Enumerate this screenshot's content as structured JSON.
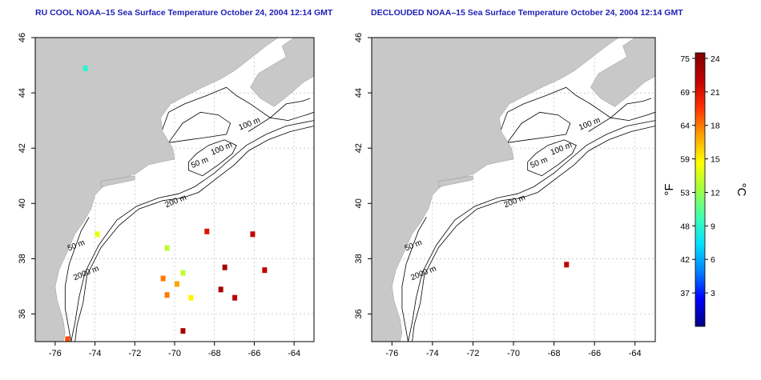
{
  "panels": [
    {
      "title": "RU COOL NOAA–15 Sea Surface Temperature October 24, 2004 12:14 GMT",
      "hot_spots": [
        {
          "lon": -67.5,
          "lat": 37.7,
          "temp_c": 23
        },
        {
          "lon": -67.7,
          "lat": 36.9,
          "temp_c": 23
        },
        {
          "lon": -65.5,
          "lat": 37.6,
          "temp_c": 22
        },
        {
          "lon": -69.6,
          "lat": 37.5,
          "temp_c": 13
        },
        {
          "lon": -69.9,
          "lat": 37.1,
          "temp_c": 17
        },
        {
          "lon": -70.6,
          "lat": 37.3,
          "temp_c": 18
        },
        {
          "lon": -70.4,
          "lat": 36.7,
          "temp_c": 18
        },
        {
          "lon": -69.2,
          "lat": 36.6,
          "temp_c": 15
        },
        {
          "lon": -75.4,
          "lat": 35.1,
          "temp_c": 19
        },
        {
          "lon": -73.9,
          "lat": 38.9,
          "temp_c": 14
        },
        {
          "lon": -70.4,
          "lat": 38.4,
          "temp_c": 13
        },
        {
          "lon": -68.4,
          "lat": 39.0,
          "temp_c": 21
        },
        {
          "lon": -66.1,
          "lat": 38.9,
          "temp_c": 22
        },
        {
          "lon": -67.0,
          "lat": 36.6,
          "temp_c": 22
        },
        {
          "lon": -69.6,
          "lat": 35.4,
          "temp_c": 23
        },
        {
          "lon": -74.5,
          "lat": 44.9,
          "temp_c": 9
        }
      ]
    },
    {
      "title": "DECLOUDED NOAA–15 Sea Surface Temperature October 24, 2004 12:14 GMT",
      "hot_spots": [
        {
          "lon": -67.4,
          "lat": 37.8,
          "temp_c": 22
        }
      ]
    }
  ],
  "map": {
    "lon_range": [
      -77,
      -63
    ],
    "lat_range": [
      35,
      46
    ],
    "lon_ticks": [
      -76,
      -74,
      -72,
      -70,
      -68,
      -66,
      -64
    ],
    "lat_ticks": [
      36,
      38,
      40,
      42,
      44,
      46
    ],
    "gridlines": true,
    "contour_labels": [
      {
        "text": "100 m",
        "lon": -66.2,
        "lat": 42.8
      },
      {
        "text": "100 m",
        "lon": -67.6,
        "lat": 41.9
      },
      {
        "text": "50 m",
        "lon": -68.7,
        "lat": 41.4
      },
      {
        "text": "200 m",
        "lon": -69.9,
        "lat": 40.0
      },
      {
        "text": "50 m",
        "lon": -74.9,
        "lat": 38.4
      },
      {
        "text": "2000 m",
        "lon": -74.4,
        "lat": 37.4
      }
    ],
    "colors": {
      "land": "#c8c8c8",
      "ocean": "#ffffff",
      "contour": "#000000",
      "grid": "#bbbbbb"
    }
  },
  "colorbar": {
    "fahrenheit_label": "°F",
    "celsius_label": "°C",
    "fahrenheit_ticks": [
      "75",
      "69",
      "64",
      "59",
      "53",
      "48",
      "42",
      "37"
    ],
    "celsius_ticks": [
      "24",
      "21",
      "18",
      "15",
      "12",
      "9",
      "6",
      "3"
    ],
    "celsius_tick_values": [
      24,
      21,
      18,
      15,
      12,
      9,
      6,
      3
    ],
    "range_c": [
      0,
      24.5
    ],
    "gradient": [
      "#000080",
      "#0000ff",
      "#0080ff",
      "#00e0ff",
      "#40ffb0",
      "#a0ff40",
      "#ffff00",
      "#ffa000",
      "#ff3000",
      "#c00000",
      "#800000"
    ]
  }
}
